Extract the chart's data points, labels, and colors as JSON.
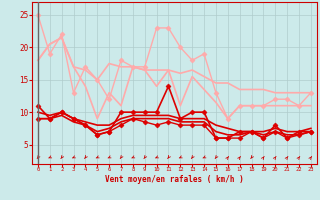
{
  "bg_color": "#cceaea",
  "grid_color": "#b0cccc",
  "xlabel": "Vent moyen/en rafales ( km/h )",
  "x_ticks": [
    0,
    1,
    2,
    3,
    4,
    5,
    6,
    7,
    8,
    9,
    10,
    11,
    12,
    13,
    14,
    15,
    16,
    17,
    18,
    19,
    20,
    21,
    22,
    23
  ],
  "ylim": [
    2,
    27
  ],
  "yticks": [
    5,
    10,
    15,
    20,
    25
  ],
  "series": [
    {
      "x": [
        0,
        1,
        2,
        3,
        4,
        5,
        6,
        7,
        8,
        9,
        10,
        11,
        12,
        13,
        14,
        15,
        16,
        17,
        18,
        19,
        20,
        21,
        22,
        23
      ],
      "y": [
        25,
        19,
        22,
        13,
        17,
        15,
        12,
        18,
        17,
        17,
        23,
        23,
        20,
        18,
        19,
        13,
        9,
        11,
        11,
        11,
        12,
        12,
        11,
        13
      ],
      "color": "#ffaaaa",
      "lw": 1.0,
      "marker": "D",
      "ms": 2.5
    },
    {
      "x": [
        0,
        1,
        2,
        3,
        4,
        5,
        6,
        7,
        8,
        9,
        10,
        11,
        12,
        13,
        14,
        15,
        16,
        17,
        18,
        19,
        20,
        21,
        22,
        23
      ],
      "y": [
        18.0,
        20.5,
        21.5,
        17.0,
        16.5,
        15.0,
        17.5,
        17.0,
        17.0,
        16.5,
        16.5,
        16.5,
        16.0,
        16.5,
        15.5,
        14.5,
        14.5,
        13.5,
        13.5,
        13.5,
        13.0,
        13.0,
        13.0,
        13.0
      ],
      "color": "#ffaaaa",
      "lw": 1.2,
      "marker": null,
      "ms": 0
    },
    {
      "x": [
        0,
        1,
        2,
        3,
        4,
        5,
        6,
        7,
        8,
        9,
        10,
        11,
        12,
        13,
        14,
        15,
        16,
        17,
        18,
        19,
        20,
        21,
        22,
        23
      ],
      "y": [
        18.0,
        20.5,
        21.5,
        17.0,
        14.0,
        9.0,
        13.0,
        11.0,
        17.0,
        16.5,
        14.0,
        16.5,
        11.0,
        15.5,
        13.5,
        11.5,
        9.0,
        11.0,
        11.0,
        11.0,
        11.0,
        11.0,
        11.0,
        11.0
      ],
      "color": "#ffaaaa",
      "lw": 1.2,
      "marker": null,
      "ms": 0
    },
    {
      "x": [
        0,
        1,
        2,
        3,
        4,
        5,
        6,
        7,
        8,
        9,
        10,
        11,
        12,
        13,
        14,
        15,
        16,
        17,
        18,
        19,
        20,
        21,
        22,
        23
      ],
      "y": [
        11,
        9,
        10,
        9,
        8,
        6.5,
        7,
        10,
        10,
        10,
        10,
        14,
        9,
        10,
        10,
        6,
        6,
        7,
        7,
        6,
        8,
        6,
        7,
        7
      ],
      "color": "#dd0000",
      "lw": 1.2,
      "marker": "D",
      "ms": 2.5
    },
    {
      "x": [
        0,
        1,
        2,
        3,
        4,
        5,
        6,
        7,
        8,
        9,
        10,
        11,
        12,
        13,
        14,
        15,
        16,
        17,
        18,
        19,
        20,
        21,
        22,
        23
      ],
      "y": [
        9,
        9,
        10,
        9,
        8,
        6.5,
        7,
        8,
        9,
        8.5,
        8,
        8.5,
        8,
        8,
        8,
        6,
        6,
        6,
        7,
        6,
        7,
        6,
        6.5,
        7
      ],
      "color": "#dd0000",
      "lw": 1.0,
      "marker": "D",
      "ms": 2.5
    },
    {
      "x": [
        0,
        1,
        2,
        3,
        4,
        5,
        6,
        7,
        8,
        9,
        10,
        11,
        12,
        13,
        14,
        15,
        16,
        17,
        18,
        19,
        20,
        21,
        22,
        23
      ],
      "y": [
        10,
        9.5,
        10,
        9,
        8.5,
        8,
        8,
        9,
        9.5,
        9.5,
        9.5,
        9.5,
        9,
        9,
        9,
        8,
        7.5,
        7,
        7,
        7,
        7.5,
        7,
        7,
        7.5
      ],
      "color": "#dd0000",
      "lw": 1.2,
      "marker": null,
      "ms": 0
    },
    {
      "x": [
        0,
        1,
        2,
        3,
        4,
        5,
        6,
        7,
        8,
        9,
        10,
        11,
        12,
        13,
        14,
        15,
        16,
        17,
        18,
        19,
        20,
        21,
        22,
        23
      ],
      "y": [
        9,
        9,
        9.5,
        8.5,
        8,
        7,
        7.5,
        8.5,
        9,
        9,
        9,
        9,
        8.5,
        8.5,
        8.5,
        7,
        6.5,
        6.5,
        7,
        6.5,
        7,
        6.5,
        6.5,
        7
      ],
      "color": "#dd0000",
      "lw": 1.2,
      "marker": null,
      "ms": 0
    }
  ],
  "arrow_angles": [
    210,
    240,
    210,
    240,
    210,
    240,
    240,
    210,
    240,
    210,
    240,
    210,
    240,
    210,
    240,
    210,
    30,
    30,
    210,
    30,
    30,
    30,
    30,
    30
  ]
}
